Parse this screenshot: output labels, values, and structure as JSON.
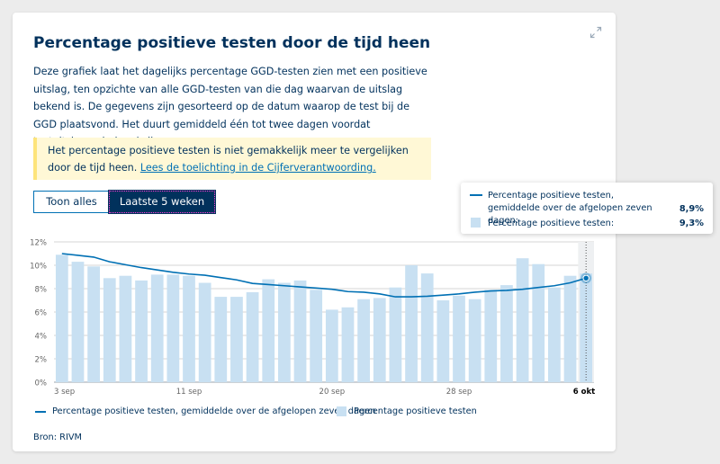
{
  "card": {
    "title": "Percentage positieve testen door de tijd heen",
    "description": "Deze grafiek laat het dagelijks percentage GGD-testen zien met een positieve uitslag, ten opzichte van alle GGD-testen van die dag waarvan de uitslag bekend is. De gegevens zijn gesorteerd op de datum waarop de test bij de GGD plaatsvond. Het duurt gemiddeld één tot twee dagen voordat testuitslagen bekend zijn.",
    "notice_text": "Het percentage positieve testen is niet gemakkelijk meer te vergelijken door de tijd heen.",
    "notice_link": "Lees de toelichting in de Cijferverantwoording.",
    "toggle_all": "Toon alles",
    "toggle_weeks": "Laatste 5 weken",
    "source": "Bron: RIVM",
    "expand_icon": "expand-icon"
  },
  "tooltip": {
    "line_label": "Percentage positieve testen, gemiddelde over de afgelopen zeven dagen:",
    "line_value": "8,9%",
    "bar_label": "Percentage positieve testen:",
    "bar_value": "9,3%"
  },
  "legend": {
    "line_label": "Percentage positieve testen, gemiddelde over de afgelopen zeven dagen",
    "bar_label": "Percentage positieve testen"
  },
  "colors": {
    "bar": "#c8e0f2",
    "line": "#0070b4",
    "text": "#01315c",
    "notice_bg": "#fff8d6",
    "notice_border": "#fde47b",
    "grid": "#d6d6d6"
  },
  "chart_data": {
    "type": "bar",
    "title": "Percentage positieve testen door de tijd heen",
    "ylim": [
      0,
      12
    ],
    "y_ticks": [
      "0%",
      "2%",
      "4%",
      "6%",
      "8%",
      "10%",
      "12%"
    ],
    "x_tick_labels": [
      "3 sep",
      "11 sep",
      "20 sep",
      "28 sep",
      "6 okt"
    ],
    "x_tick_indices": [
      0,
      8,
      17,
      25,
      33
    ],
    "highlight_index": 33,
    "grid": true,
    "legend_position": "bottom",
    "x": [
      "3 sep",
      "4 sep",
      "5 sep",
      "6 sep",
      "7 sep",
      "8 sep",
      "9 sep",
      "10 sep",
      "11 sep",
      "12 sep",
      "13 sep",
      "14 sep",
      "15 sep",
      "16 sep",
      "17 sep",
      "18 sep",
      "19 sep",
      "20 sep",
      "21 sep",
      "22 sep",
      "23 sep",
      "24 sep",
      "25 sep",
      "26 sep",
      "27 sep",
      "28 sep",
      "29 sep",
      "30 sep",
      "1 okt",
      "2 okt",
      "3 okt",
      "4 okt",
      "5 okt",
      "6 okt"
    ],
    "series": [
      {
        "name": "Percentage positieve testen",
        "type": "bar",
        "values": [
          10.9,
          10.3,
          9.9,
          8.9,
          9.1,
          8.7,
          9.2,
          9.2,
          9.1,
          8.5,
          7.3,
          7.3,
          7.7,
          8.8,
          8.5,
          8.7,
          7.9,
          6.2,
          6.4,
          7.1,
          7.2,
          8.1,
          10.0,
          9.3,
          7.0,
          7.4,
          7.1,
          7.9,
          8.3,
          10.6,
          10.1,
          8.1,
          9.1,
          9.3
        ]
      },
      {
        "name": "Percentage positieve testen, gemiddelde over de afgelopen zeven dagen",
        "type": "line",
        "values": [
          11.0,
          10.85,
          10.7,
          10.3,
          10.05,
          9.8,
          9.6,
          9.4,
          9.25,
          9.15,
          8.95,
          8.75,
          8.45,
          8.35,
          8.25,
          8.15,
          8.05,
          7.95,
          7.75,
          7.7,
          7.55,
          7.3,
          7.3,
          7.35,
          7.45,
          7.55,
          7.7,
          7.8,
          7.85,
          7.95,
          8.1,
          8.25,
          8.5,
          8.9
        ]
      }
    ]
  }
}
